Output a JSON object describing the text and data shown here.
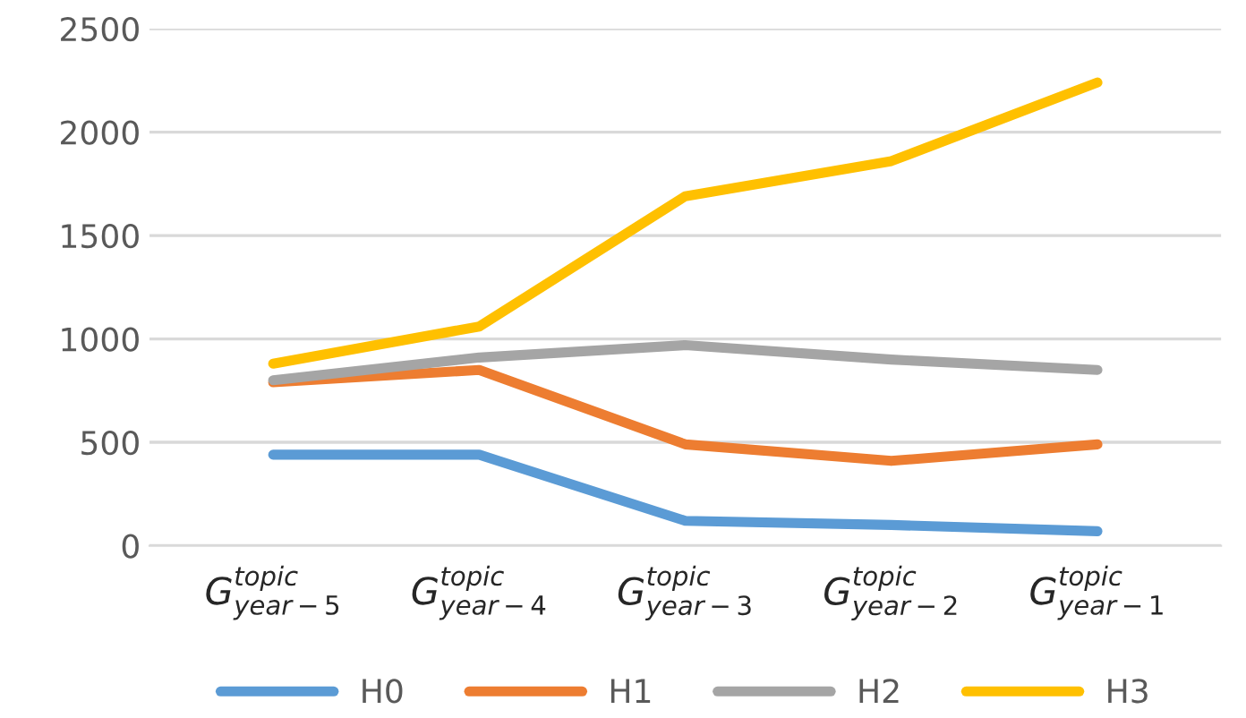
{
  "chart_data": {
    "type": "line",
    "categories": [
      "G$^{topic}$$_{year−5}$",
      "G$^{topic}$$_{year−4}$",
      "G$^{topic}$$_{year−3}$",
      "G$^{topic}$$_{year−2}$",
      "G$^{topic}$$_{year−1}$"
    ],
    "series": [
      {
        "name": "H0",
        "color": "#5b9bd5",
        "values": [
          440,
          440,
          120,
          100,
          70
        ]
      },
      {
        "name": "H1",
        "color": "#ed7d31",
        "values": [
          790,
          850,
          490,
          410,
          490
        ]
      },
      {
        "name": "H2",
        "color": "#a5a5a5",
        "values": [
          800,
          910,
          970,
          900,
          850
        ]
      },
      {
        "name": "H3",
        "color": "#ffc000",
        "values": [
          880,
          1060,
          1690,
          1860,
          2240
        ]
      }
    ],
    "ylim": [
      0,
      2500
    ],
    "yticks": [
      0,
      500,
      1000,
      1500,
      2000,
      2500
    ],
    "grid": "y",
    "legend": "bottom",
    "marker": "none",
    "line_style": "solid"
  }
}
